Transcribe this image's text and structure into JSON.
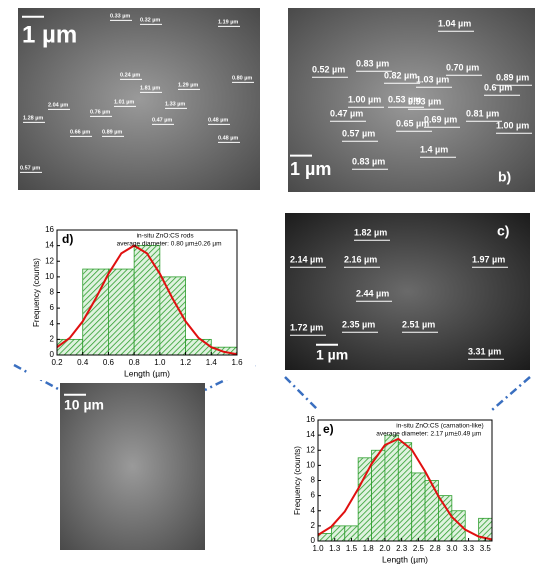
{
  "images": [
    {
      "scale_bar": "1 µm",
      "labels": [
        "0.33 µm",
        "0.32 µm",
        "1.19 µm",
        "0.24 µm",
        "1.81 µm",
        "1.29 µm",
        "0.80 µm",
        "2.04 µm",
        "0.76 µm",
        "1.01 µm",
        "1.33 µm",
        "1.28 µm",
        "0.66 µm",
        "0.89 µm",
        "0.47 µm",
        "0.48 µm",
        "0.48 µm",
        "0.57 µm"
      ]
    },
    {
      "panel": "b)",
      "scale_bar": "1 µm",
      "labels": [
        "1.04 µm",
        "0.52 µm",
        "0.83 µm",
        "0.82 µm",
        "1.03 µm",
        "0.70 µm",
        "0.89 µm",
        "0.6 µm",
        "1.00 µm",
        "0.53 µm",
        "0.93 µm",
        "0.47 µm",
        "0.65 µm",
        "0.69 µm",
        "0.81 µm",
        "1.00 µm",
        "0.57 µm",
        "1.4 µm",
        "0.83 µm"
      ]
    },
    {
      "panel": "c)",
      "scale_bar": "1 µm",
      "labels": [
        "1.82 µm",
        "2.14 µm",
        "2.16 µm",
        "1.97 µm",
        "2.44 µm",
        "1.72 µm",
        "2.35 µm",
        "2.51 µm",
        "3.31 µm"
      ]
    },
    {
      "scale_bar": "10 µm"
    }
  ],
  "chart_data": [
    {
      "type": "histogram",
      "panel": "d)",
      "annotation": [
        "in-situ ZnO:CS rods",
        "average diameter: 0.80 µm±0.26 µm"
      ],
      "x_label": "Length (µm)",
      "y_label": "Frequency (counts)",
      "color": "#2e9e2e",
      "curve_color": "#e01010",
      "bins": [
        0.2,
        0.4,
        0.6,
        0.8,
        1.0,
        1.2,
        1.4,
        1.6
      ],
      "values": [
        2,
        11,
        11,
        14,
        10,
        2,
        1
      ],
      "curve": {
        "x": [
          0.2,
          0.3,
          0.4,
          0.5,
          0.6,
          0.7,
          0.8,
          0.9,
          1.0,
          1.1,
          1.2,
          1.3,
          1.4,
          1.5,
          1.6
        ],
        "values": [
          1.0,
          2.2,
          4.3,
          7.2,
          10.4,
          13.0,
          14,
          13.0,
          10.4,
          7.2,
          4.3,
          2.2,
          1.0,
          0.4,
          0.1
        ]
      },
      "xlim": [
        0.2,
        1.6
      ],
      "xticks": [
        0.2,
        0.4,
        0.6,
        0.8,
        {
          "value": 1,
          "label": "1.0"
        },
        1.2,
        1.4,
        1.6
      ],
      "ylim": [
        0,
        16
      ],
      "yticks": [
        0,
        2,
        4,
        6,
        8,
        10,
        12,
        14,
        16
      ]
    },
    {
      "type": "histogram",
      "panel": "e)",
      "annotation": [
        "in-situ ZnO:CS (carnation-like)",
        "average diameter: 2.17 µm±0.49 µm"
      ],
      "x_label": "Length (µm)",
      "y_label": "Frequency (counts)",
      "color": "#2e9e2e",
      "curve_color": "#e01010",
      "bins": [
        1.0,
        1.2,
        1.4,
        1.6,
        1.8,
        2.0,
        2.2,
        2.4,
        2.6,
        2.8,
        3.0,
        3.2,
        3.4,
        3.6
      ],
      "values": [
        1,
        2,
        2,
        11,
        12,
        14,
        13,
        9,
        8,
        6,
        4,
        0,
        3
      ],
      "curve": {
        "x": [
          1.0,
          1.2,
          1.4,
          1.6,
          1.8,
          2.0,
          2.2,
          2.4,
          2.6,
          2.8,
          3.0,
          3.2,
          3.4,
          3.6
        ],
        "values": [
          0.8,
          1.9,
          3.9,
          6.9,
          10.2,
          12.7,
          13.5,
          12.1,
          9.2,
          5.9,
          3.2,
          1.5,
          0.6,
          0.2
        ]
      },
      "xlim": [
        1.0,
        3.6
      ],
      "xticks": [
        {
          "value": 1,
          "label": "1.0"
        },
        {
          "value": 1.25,
          "label": "1.3"
        },
        1.5,
        {
          "value": 1.75,
          "label": "1.8"
        },
        {
          "value": 2,
          "label": "2.0"
        },
        {
          "value": 2.25,
          "label": "2.3"
        },
        2.5,
        {
          "value": 2.75,
          "label": "2.8"
        },
        {
          "value": 3,
          "label": "3.0"
        },
        {
          "value": 3.25,
          "label": "3.3"
        },
        3.5
      ],
      "ylim": [
        0,
        16
      ],
      "yticks": [
        0,
        2,
        4,
        6,
        8,
        10,
        12,
        14,
        16
      ]
    }
  ]
}
